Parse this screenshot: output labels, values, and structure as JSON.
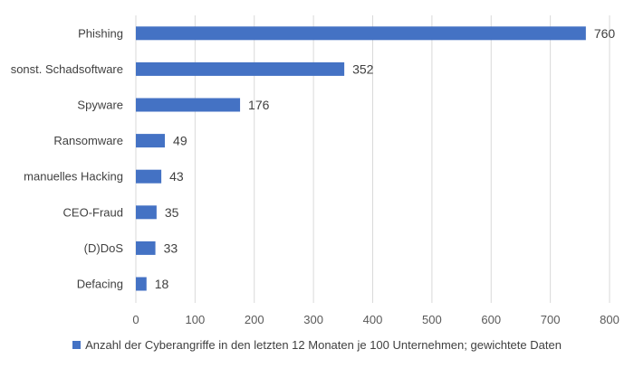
{
  "chart_data": {
    "type": "bar",
    "orientation": "horizontal",
    "categories": [
      "Phishing",
      "sonst. Schadsoftware",
      "Spyware",
      "Ransomware",
      "manuelles Hacking",
      "CEO-Fraud",
      "(D)DoS",
      "Defacing"
    ],
    "series": [
      {
        "name": "Anzahl der Cyberangriffe in den letzten 12 Monaten je 100 Unternehmen; gewichtete Daten",
        "values": [
          760,
          352,
          176,
          49,
          43,
          35,
          33,
          18
        ]
      }
    ],
    "xlim": [
      0,
      800
    ],
    "x_ticks": [
      0,
      100,
      200,
      300,
      400,
      500,
      600,
      700,
      800
    ],
    "grid": "vertical",
    "data_labels": true,
    "legend_position": "bottom",
    "bar_color": "#4472C4"
  }
}
